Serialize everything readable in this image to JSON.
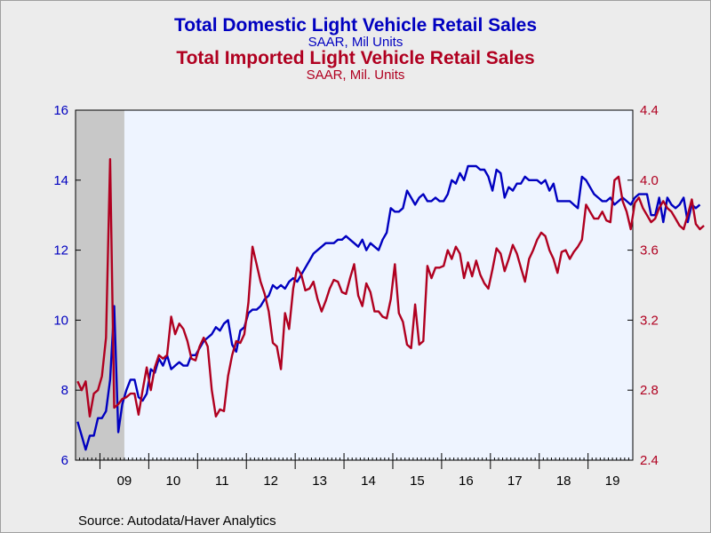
{
  "header": {
    "title1": "Total Domestic Light Vehicle Retail Sales",
    "subtitle1": "SAAR, Mil Units",
    "title2": "Total Imported Light Vehicle Retail Sales",
    "subtitle2": "SAAR, Mil. Units"
  },
  "footer": {
    "source": "Source:  Autodata/Haver Analytics"
  },
  "colors": {
    "domestic": "#0000c0",
    "imported": "#b00020",
    "plot_bg": "#eef4ff",
    "recession": "#c8c8c8"
  },
  "chart_data": {
    "type": "line",
    "x_start": "2008-07",
    "x_end": "2019-11",
    "x_tick_labels": [
      "09",
      "10",
      "11",
      "12",
      "13",
      "14",
      "15",
      "16",
      "17",
      "18",
      "19"
    ],
    "recession_shading": [
      "2008-07",
      "2009-06"
    ],
    "y_left": {
      "min": 6,
      "max": 16,
      "ticks": [
        6,
        8,
        10,
        12,
        14,
        16
      ]
    },
    "y_right": {
      "min": 2.4,
      "max": 4.4,
      "ticks": [
        "2.4",
        "2.8",
        "3.2",
        "3.6",
        "4.0",
        "4.4"
      ]
    },
    "series": [
      {
        "name": "Total Domestic Light Vehicle Retail Sales",
        "axis": "left",
        "values": [
          7.1,
          6.7,
          6.3,
          6.7,
          6.7,
          7.2,
          7.2,
          7.4,
          8.3,
          10.4,
          6.8,
          7.6,
          8.0,
          8.3,
          8.3,
          7.8,
          7.7,
          7.9,
          8.6,
          8.5,
          8.9,
          8.7,
          9.0,
          8.6,
          8.7,
          8.8,
          8.7,
          8.7,
          9.0,
          9.0,
          9.2,
          9.4,
          9.5,
          9.6,
          9.8,
          9.7,
          9.9,
          10.0,
          9.3,
          9.1,
          9.7,
          9.8,
          10.2,
          10.3,
          10.3,
          10.4,
          10.6,
          10.7,
          11.0,
          10.9,
          11.0,
          10.9,
          11.1,
          11.2,
          11.1,
          11.3,
          11.5,
          11.7,
          11.9,
          12.0,
          12.1,
          12.2,
          12.2,
          12.2,
          12.3,
          12.3,
          12.4,
          12.3,
          12.2,
          12.1,
          12.3,
          12.0,
          12.2,
          12.1,
          12.0,
          12.3,
          12.5,
          13.2,
          13.1,
          13.1,
          13.2,
          13.7,
          13.5,
          13.3,
          13.5,
          13.6,
          13.4,
          13.4,
          13.5,
          13.4,
          13.4,
          13.6,
          14.0,
          13.9,
          14.2,
          14.0,
          14.4,
          14.4,
          14.4,
          14.3,
          14.3,
          14.1,
          13.7,
          14.3,
          14.2,
          13.5,
          13.8,
          13.7,
          13.9,
          13.9,
          14.1,
          14.0,
          14.0,
          14.0,
          13.9,
          14.0,
          13.7,
          13.9,
          13.4,
          13.4,
          13.4,
          13.4,
          13.3,
          13.2,
          14.1,
          14.0,
          13.8,
          13.6,
          13.5,
          13.4,
          13.4,
          13.5,
          13.3,
          13.4,
          13.5,
          13.4,
          13.3,
          13.5,
          13.6,
          13.6,
          13.6,
          13.0,
          13.0,
          13.5,
          12.8,
          13.5,
          13.3,
          13.2,
          13.3,
          13.5,
          12.8,
          13.3,
          13.2,
          13.3
        ]
      },
      {
        "name": "Total Imported Light Vehicle Retail Sales",
        "axis": "right",
        "values": [
          2.85,
          2.8,
          2.85,
          2.65,
          2.78,
          2.8,
          2.88,
          3.1,
          4.12,
          2.7,
          2.72,
          2.75,
          2.76,
          2.78,
          2.78,
          2.66,
          2.8,
          2.93,
          2.8,
          2.93,
          3.0,
          2.98,
          3.0,
          3.22,
          3.12,
          3.18,
          3.15,
          3.08,
          2.98,
          2.97,
          3.05,
          3.1,
          3.05,
          2.8,
          2.65,
          2.69,
          2.68,
          2.88,
          3.0,
          3.08,
          3.07,
          3.12,
          3.3,
          3.62,
          3.52,
          3.42,
          3.35,
          3.25,
          3.07,
          3.05,
          2.92,
          3.24,
          3.15,
          3.38,
          3.5,
          3.46,
          3.37,
          3.38,
          3.42,
          3.32,
          3.25,
          3.31,
          3.38,
          3.43,
          3.42,
          3.36,
          3.35,
          3.44,
          3.52,
          3.34,
          3.28,
          3.41,
          3.36,
          3.25,
          3.25,
          3.22,
          3.21,
          3.32,
          3.52,
          3.24,
          3.19,
          3.06,
          3.04,
          3.29,
          3.06,
          3.08,
          3.51,
          3.44,
          3.5,
          3.5,
          3.51,
          3.6,
          3.55,
          3.62,
          3.58,
          3.44,
          3.53,
          3.45,
          3.54,
          3.46,
          3.41,
          3.38,
          3.49,
          3.61,
          3.58,
          3.48,
          3.55,
          3.63,
          3.58,
          3.5,
          3.42,
          3.55,
          3.6,
          3.66,
          3.7,
          3.68,
          3.6,
          3.55,
          3.47,
          3.59,
          3.6,
          3.55,
          3.59,
          3.62,
          3.66,
          3.86,
          3.82,
          3.78,
          3.78,
          3.82,
          3.77,
          3.76,
          4.0,
          4.02,
          3.88,
          3.82,
          3.72,
          3.87,
          3.9,
          3.84,
          3.8,
          3.76,
          3.78,
          3.84,
          3.88,
          3.84,
          3.82,
          3.78,
          3.74,
          3.72,
          3.8,
          3.89,
          3.75,
          3.72,
          3.74
        ]
      }
    ]
  }
}
